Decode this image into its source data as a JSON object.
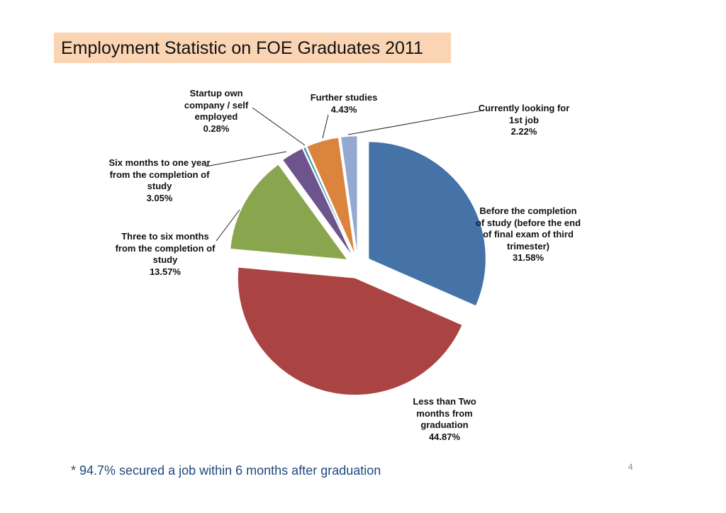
{
  "chart_data": {
    "type": "pie",
    "title": "Employment Statistic on FOE Graduates 2011",
    "categories": [
      "Before the completion of study (before the end of final exam of third trimester)",
      "Less than Two months from graduation",
      "Three to six months from the completion of study",
      "Six months to one year from the completion of study",
      "Startup own company / self employed",
      "Further studies",
      "Currently looking for 1st job"
    ],
    "values": [
      31.58,
      44.87,
      13.57,
      3.05,
      0.28,
      4.43,
      2.22
    ],
    "value_labels": [
      "31.58%",
      "44.87%",
      "13.57%",
      "3.05%",
      "0.28%",
      "4.43%",
      "2.22%"
    ],
    "colors": [
      "#4572a7",
      "#a94442",
      "#89a54e",
      "#6e548d",
      "#3d96ae",
      "#db843d",
      "#93a9cf"
    ]
  },
  "footnote": "* 94.7% secured a job within 6 months after graduation",
  "page_number": 4
}
